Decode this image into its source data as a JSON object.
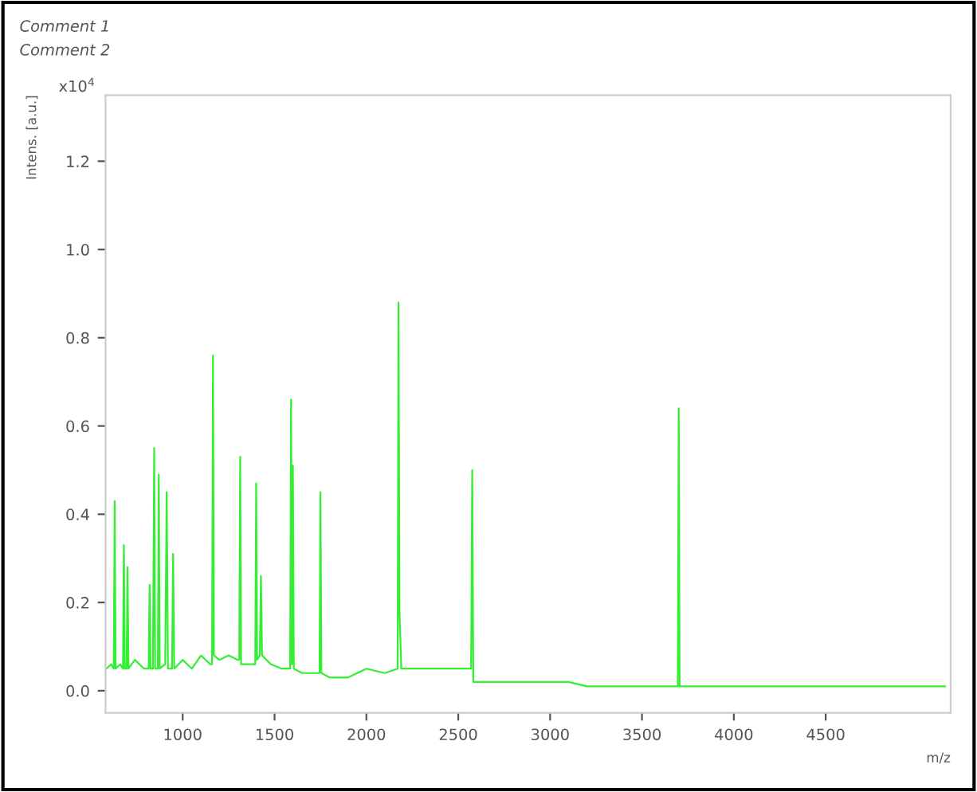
{
  "chart_data": {
    "type": "line",
    "title": "Comment 1",
    "subtitle": "Comment 2",
    "xlabel": "m/z",
    "ylabel": "Intens. [a.u.]",
    "annotations": [
      "x10$^{4}$"
    ],
    "xlim": [
      580,
      5180
    ],
    "ylim": [
      -0.05,
      1.35
    ],
    "xticks": [
      1000,
      1500,
      2000,
      2500,
      3000,
      3500,
      4000,
      4500
    ],
    "yticks": [
      {
        "value": 0,
        "label": "0.0"
      },
      0.2,
      0.4,
      0.6,
      0.8,
      {
        "value": 1,
        "label": "1.0"
      },
      1.2
    ],
    "grid": false,
    "legend": false,
    "marker": "none",
    "line_style": "solid",
    "series": [
      {
        "color": "#33ee33",
        "x": [
          585,
          610,
          625,
          630,
          635,
          660,
          675,
          680,
          685,
          695,
          700,
          705,
          740,
          790,
          815,
          820,
          825,
          838,
          845,
          850,
          865,
          870,
          875,
          905,
          913,
          920,
          942,
          948,
          954,
          1000,
          1050,
          1100,
          1150,
          1160,
          1165,
          1170,
          1200,
          1250,
          1300,
          1308,
          1313,
          1318,
          1350,
          1395,
          1400,
          1405,
          1420,
          1426,
          1432,
          1480,
          1540,
          1585,
          1590,
          1595,
          1600,
          1605,
          1650,
          1700,
          1745,
          1750,
          1755,
          1800,
          1900,
          2000,
          2100,
          2170,
          2175,
          2180,
          2190,
          2250,
          2350,
          2450,
          2570,
          2576,
          2582,
          2620,
          2700,
          2800,
          2900,
          3000,
          3100,
          3200,
          3300,
          3400,
          3500,
          3600,
          3695,
          3700,
          3705,
          3800,
          4000,
          4200,
          4400,
          4600,
          4800,
          5000,
          5150
        ],
        "values": [
          0.05,
          0.06,
          0.05,
          0.43,
          0.05,
          0.06,
          0.05,
          0.33,
          0.05,
          0.05,
          0.28,
          0.05,
          0.07,
          0.05,
          0.05,
          0.24,
          0.05,
          0.05,
          0.55,
          0.05,
          0.05,
          0.49,
          0.05,
          0.06,
          0.45,
          0.05,
          0.05,
          0.31,
          0.05,
          0.07,
          0.05,
          0.08,
          0.06,
          0.06,
          0.76,
          0.08,
          0.07,
          0.08,
          0.07,
          0.07,
          0.53,
          0.06,
          0.06,
          0.06,
          0.47,
          0.07,
          0.08,
          0.26,
          0.08,
          0.06,
          0.05,
          0.05,
          0.66,
          0.06,
          0.51,
          0.05,
          0.04,
          0.04,
          0.04,
          0.45,
          0.04,
          0.03,
          0.03,
          0.05,
          0.04,
          0.05,
          0.88,
          0.18,
          0.05,
          0.05,
          0.05,
          0.05,
          0.05,
          0.5,
          0.02,
          0.02,
          0.02,
          0.02,
          0.02,
          0.02,
          0.02,
          0.01,
          0.01,
          0.01,
          0.01,
          0.01,
          0.01,
          0.64,
          0.01,
          0.01,
          0.01,
          0.01,
          0.01,
          0.01,
          0.01,
          0.01,
          0.01
        ]
      }
    ]
  }
}
